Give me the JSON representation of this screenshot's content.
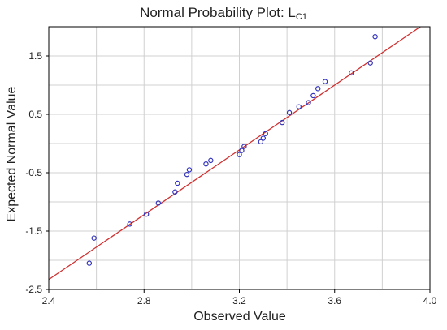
{
  "chart_data": {
    "type": "scatter",
    "title_main": "Normal Probability Plot: L",
    "title_sub": "C1",
    "xlabel": "Observed Value",
    "ylabel": "Expected Normal Value",
    "xlim": [
      2.4,
      4.0
    ],
    "ylim": [
      -2.5,
      2.0
    ],
    "xticks": [
      2.4,
      2.8,
      3.2,
      3.6,
      4.0
    ],
    "xtick_labels": [
      "2.4",
      "2.8",
      "3.2",
      "3.6",
      "4.0"
    ],
    "yticks": [
      -2.5,
      -1.5,
      -0.5,
      0.5,
      1.5
    ],
    "ytick_labels": [
      "-2.5",
      "-1.5",
      "-0.5",
      "0.5",
      "1.5"
    ],
    "grid": true,
    "marker_color": "#3333bb",
    "line_color": "#d03030",
    "fit_line": {
      "x": [
        2.4,
        3.96
      ],
      "y": [
        -2.33,
        2.0
      ]
    },
    "points": [
      {
        "x": 2.57,
        "y": -2.05
      },
      {
        "x": 2.59,
        "y": -1.62
      },
      {
        "x": 2.74,
        "y": -1.38
      },
      {
        "x": 2.81,
        "y": -1.21
      },
      {
        "x": 2.86,
        "y": -1.02
      },
      {
        "x": 2.93,
        "y": -0.83
      },
      {
        "x": 2.94,
        "y": -0.68
      },
      {
        "x": 2.98,
        "y": -0.53
      },
      {
        "x": 2.99,
        "y": -0.45
      },
      {
        "x": 3.06,
        "y": -0.35
      },
      {
        "x": 3.08,
        "y": -0.29
      },
      {
        "x": 3.2,
        "y": -0.19
      },
      {
        "x": 3.21,
        "y": -0.12
      },
      {
        "x": 3.22,
        "y": -0.05
      },
      {
        "x": 3.29,
        "y": 0.03
      },
      {
        "x": 3.3,
        "y": 0.09
      },
      {
        "x": 3.31,
        "y": 0.17
      },
      {
        "x": 3.38,
        "y": 0.36
      },
      {
        "x": 3.41,
        "y": 0.53
      },
      {
        "x": 3.45,
        "y": 0.63
      },
      {
        "x": 3.49,
        "y": 0.7
      },
      {
        "x": 3.51,
        "y": 0.82
      },
      {
        "x": 3.53,
        "y": 0.94
      },
      {
        "x": 3.56,
        "y": 1.06
      },
      {
        "x": 3.67,
        "y": 1.21
      },
      {
        "x": 3.75,
        "y": 1.38
      },
      {
        "x": 3.77,
        "y": 1.83
      }
    ]
  }
}
